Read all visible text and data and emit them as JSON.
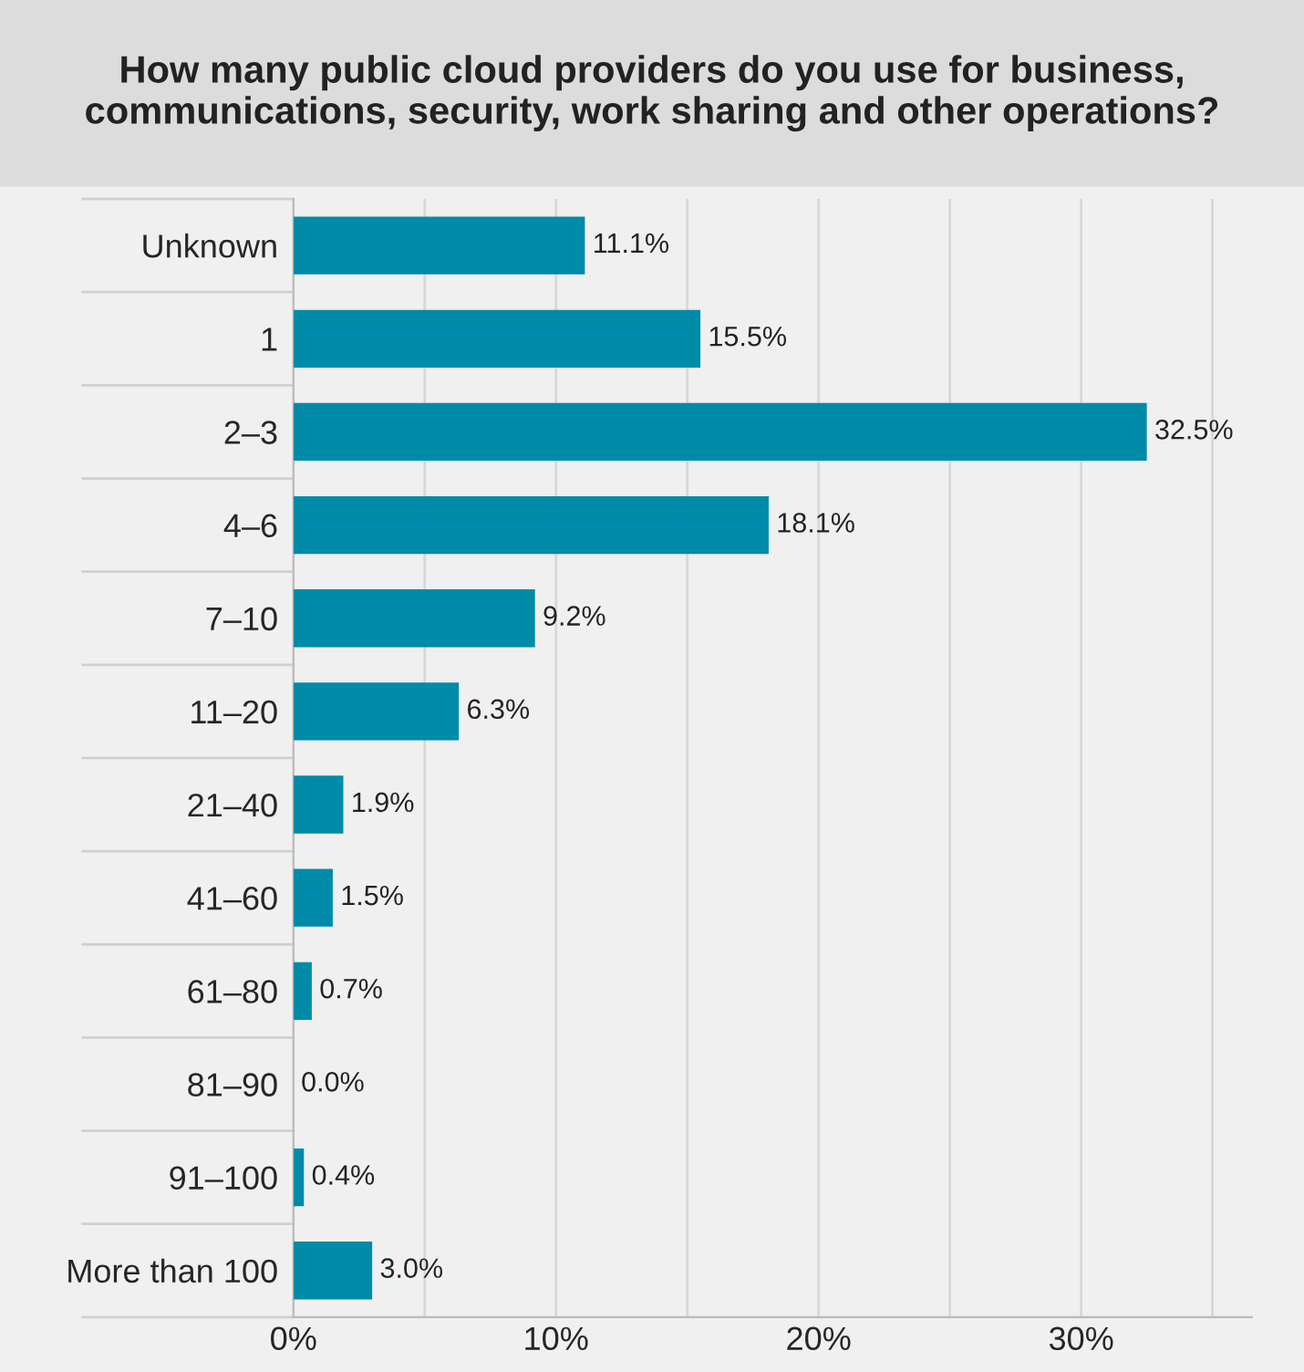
{
  "chart_data": {
    "type": "bar",
    "orientation": "horizontal",
    "title": "How many public cloud providers do you use for business, communications, security, work sharing and other operations?",
    "categories": [
      "Unknown",
      "1",
      "2–3",
      "4–6",
      "7–10",
      "11–20",
      "21–40",
      "41–60",
      "61–80",
      "81–90",
      "91–100",
      "More than 100"
    ],
    "values": [
      11.1,
      15.5,
      32.5,
      18.1,
      9.2,
      6.3,
      1.9,
      1.5,
      0.7,
      0.0,
      0.4,
      3.0
    ],
    "value_labels": [
      "11.1%",
      "15.5%",
      "32.5%",
      "18.1%",
      "9.2%",
      "6.3%",
      "1.9%",
      "1.5%",
      "0.7%",
      "0.0%",
      "0.4%",
      "3.0%"
    ],
    "color": "#008ba8",
    "xlim": [
      0,
      36.5
    ],
    "xticks": [
      {
        "value": 0,
        "label": "0%"
      },
      {
        "value": 5,
        "label": null
      },
      {
        "value": 10,
        "label": "10%"
      },
      {
        "value": 15,
        "label": null
      },
      {
        "value": 20,
        "label": "20%"
      },
      {
        "value": 25,
        "label": null
      },
      {
        "value": 30,
        "label": "30%"
      },
      {
        "value": 35,
        "label": null
      }
    ],
    "grid": "x"
  }
}
